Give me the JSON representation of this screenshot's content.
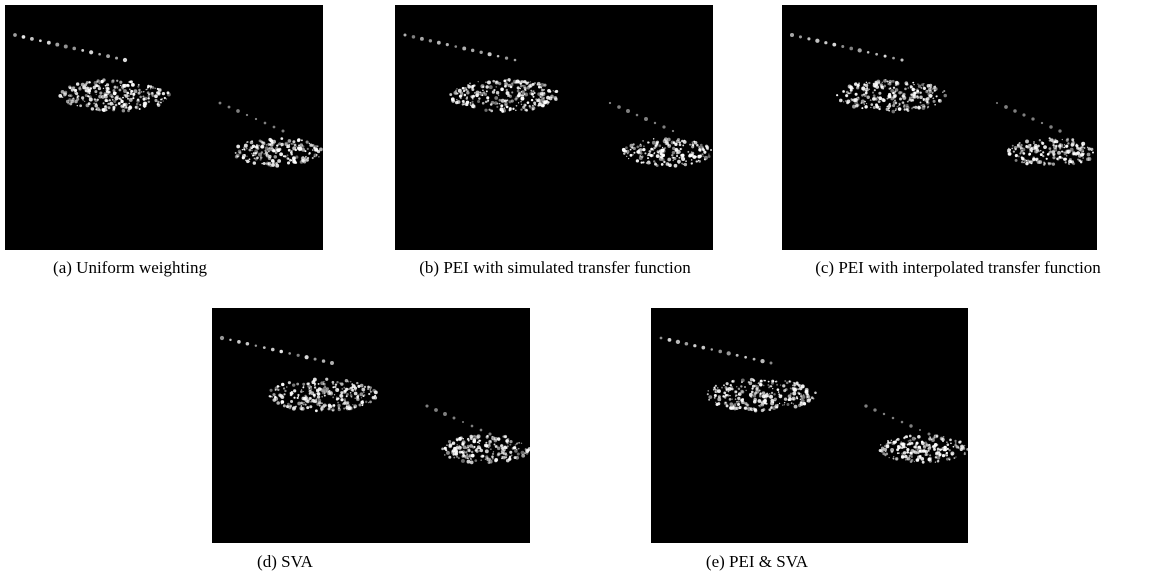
{
  "figure": {
    "panels": [
      {
        "caption": "(a) Uniform weighting"
      },
      {
        "caption": "(b) PEI with simulated transfer function"
      },
      {
        "caption": "(c) PEI with interpolated transfer function"
      },
      {
        "caption": "(d) SVA"
      },
      {
        "caption": "(e) PEI & SVA"
      }
    ]
  }
}
